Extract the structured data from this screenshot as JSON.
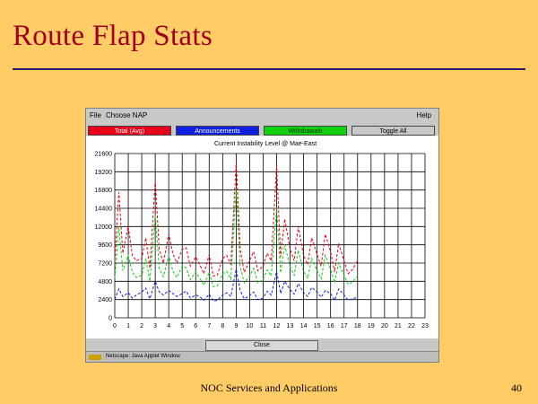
{
  "slide": {
    "title": "Route Flap Stats",
    "footer": "NOC Services and Applications",
    "page_number": "40"
  },
  "window": {
    "menu": {
      "file": "File",
      "choose": "Choose NAP",
      "help": "Help"
    },
    "legend": {
      "total": "Total (Avg)",
      "announcements": "Announcements",
      "withdrawals": "Withdrawals",
      "toggle": "Toggle All"
    },
    "close_label": "Close",
    "status_text": "Netscape: Java Applet Window"
  },
  "colors": {
    "background": "#FFCC66",
    "title": "#A00020",
    "total": "#E8001A",
    "announcements": "#1020E0",
    "withdrawals": "#10D010"
  },
  "chart_data": {
    "type": "line",
    "title": "Current Instability Level @ Mae-East",
    "xlim": [
      0,
      23
    ],
    "ylim": [
      0,
      21600
    ],
    "x_ticks": [
      "0",
      "1",
      "2",
      "3",
      "4",
      "5",
      "6",
      "7",
      "8",
      "9",
      "10",
      "11",
      "12",
      "13",
      "14",
      "15",
      "16",
      "17",
      "18",
      "19",
      "20",
      "21",
      "22",
      "23"
    ],
    "y_ticks": [
      "0",
      "2400",
      "4800",
      "7200",
      "9600",
      "12000",
      "14400",
      "16800",
      "19200",
      "21600"
    ],
    "grid": true,
    "series": [
      {
        "name": "Total (Avg)",
        "color": "#E8001A",
        "x": [
          0,
          0.3,
          0.6,
          1,
          1.3,
          1.6,
          2,
          2.3,
          2.6,
          3,
          3.3,
          3.6,
          4,
          4.3,
          4.6,
          5,
          5.3,
          5.6,
          6,
          6.3,
          6.6,
          7,
          7.3,
          7.6,
          8,
          8.3,
          8.6,
          9,
          9.3,
          9.6,
          10,
          10.3,
          10.6,
          11,
          11.3,
          11.6,
          12,
          12.3,
          12.6,
          13,
          13.3,
          13.6,
          14,
          14.3,
          14.6,
          15,
          15.3,
          15.6,
          16,
          16.3,
          16.6,
          17,
          17.3,
          17.6,
          18
        ],
        "y": [
          7500,
          16500,
          8500,
          12000,
          8200,
          7500,
          7800,
          10500,
          6500,
          18000,
          9000,
          7200,
          11000,
          8500,
          7200,
          9000,
          9200,
          6800,
          8000,
          7000,
          5800,
          8300,
          5500,
          5600,
          7800,
          8200,
          7000,
          20500,
          9000,
          6000,
          7500,
          8700,
          6200,
          6800,
          8500,
          7500,
          20000,
          8000,
          13000,
          9000,
          7500,
          12000,
          8200,
          7000,
          10500,
          8300,
          6800,
          11000,
          8700,
          6000,
          9800,
          7500,
          5800,
          6300,
          7500
        ]
      },
      {
        "name": "Withdrawals",
        "color": "#10D010",
        "x": [
          0,
          0.3,
          0.6,
          1,
          1.3,
          1.6,
          2,
          2.3,
          2.6,
          3,
          3.3,
          3.6,
          4,
          4.3,
          4.6,
          5,
          5.3,
          5.6,
          6,
          6.3,
          6.6,
          7,
          7.3,
          7.6,
          8,
          8.3,
          8.6,
          9,
          9.3,
          9.6,
          10,
          10.3,
          10.6,
          11,
          11.3,
          11.6,
          12,
          12.3,
          12.6,
          13,
          13.3,
          13.6,
          14,
          14.3,
          14.6,
          15,
          15.3,
          15.6,
          16,
          16.3,
          16.6,
          17,
          17.3,
          17.6,
          18
        ],
        "y": [
          5200,
          12000,
          6200,
          8200,
          6000,
          5300,
          5600,
          7800,
          4800,
          13500,
          6500,
          5400,
          8200,
          6200,
          5300,
          6800,
          6600,
          5000,
          6000,
          5200,
          4300,
          6000,
          4100,
          4200,
          5800,
          6100,
          5100,
          17000,
          6700,
          4600,
          5500,
          6500,
          4600,
          5100,
          6300,
          5500,
          14500,
          5900,
          9600,
          6700,
          5600,
          8900,
          6100,
          5200,
          7800,
          6200,
          5100,
          8200,
          6400,
          4600,
          7200,
          5600,
          4400,
          4700,
          5500
        ]
      },
      {
        "name": "Announcements",
        "color": "#1020E0",
        "x": [
          0,
          0.3,
          0.6,
          1,
          1.3,
          1.6,
          2,
          2.3,
          2.6,
          3,
          3.3,
          3.6,
          4,
          4.3,
          4.6,
          5,
          5.3,
          5.6,
          6,
          6.3,
          6.6,
          7,
          7.3,
          7.6,
          8,
          8.3,
          8.6,
          9,
          9.3,
          9.6,
          10,
          10.3,
          10.6,
          11,
          11.3,
          11.6,
          12,
          12.3,
          12.6,
          13,
          13.3,
          13.6,
          14,
          14.3,
          14.6,
          15,
          15.3,
          15.6,
          16,
          16.3,
          16.6,
          17,
          17.3,
          17.6,
          18
        ],
        "y": [
          2400,
          3800,
          2800,
          3300,
          2600,
          3000,
          3400,
          3900,
          2500,
          4800,
          3400,
          3000,
          3600,
          3200,
          2800,
          3200,
          3500,
          2600,
          3000,
          2800,
          2300,
          3100,
          2200,
          2300,
          3000,
          3300,
          2800,
          6400,
          3600,
          2500,
          2900,
          3400,
          2400,
          2600,
          3500,
          3000,
          6100,
          3200,
          4800,
          3700,
          3100,
          4500,
          3300,
          2800,
          4000,
          3400,
          2700,
          3600,
          3200,
          2300,
          3800,
          3000,
          2300,
          2500,
          2700
        ]
      }
    ]
  }
}
